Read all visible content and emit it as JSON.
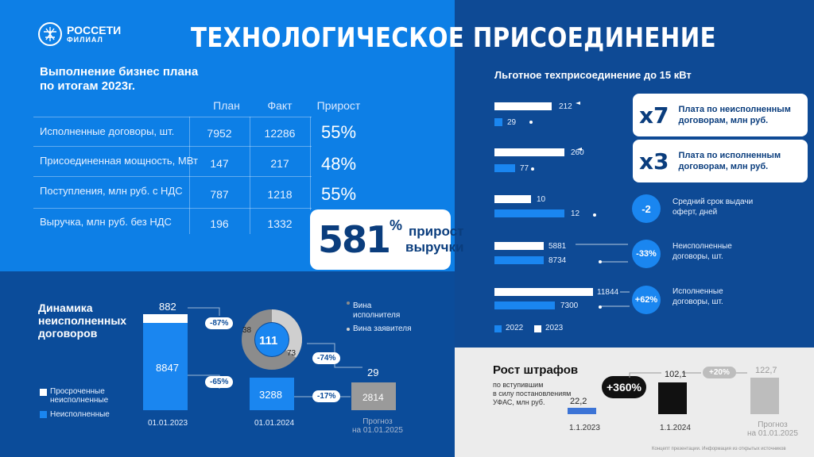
{
  "header": {
    "logo_name": "РОССЕТИ",
    "logo_sub": "ФИЛИАЛ",
    "title": "ТЕХНОЛОГИЧЕСКОЕ ПРИСОЕДИНЕНИЕ"
  },
  "business_plan": {
    "title_line1": "Выполнение бизнес плана",
    "title_line2": "по итогам 2023г.",
    "columns": [
      "План",
      "Факт",
      "Прирост"
    ],
    "rows": [
      {
        "label": "Исполненные договоры, шт.",
        "plan": "7952",
        "fact": "12286",
        "growth": "55%"
      },
      {
        "label": "Присоединенная мощность, МВт",
        "plan": "147",
        "fact": "217",
        "growth": "48%"
      },
      {
        "label": "Поступления, млн руб. с НДС",
        "plan": "787",
        "fact": "1218",
        "growth": "55%"
      },
      {
        "label": "Выручка, млн руб. без НДС",
        "plan": "196",
        "fact": "1332",
        "growth": ""
      }
    ],
    "highlight": {
      "value": "581",
      "unit": "%",
      "text_line1": "прирост",
      "text_line2": "выручки"
    }
  },
  "dynamics": {
    "title_line1": "Динамика",
    "title_line2": "неисполненных",
    "title_line3": "договоров",
    "legend": {
      "overdue_line1": "Просроченные",
      "overdue_line2": "неисполненные",
      "unfulfilled": "Неисполненные"
    },
    "bar1": {
      "top": "882",
      "main": "8847",
      "date": "01.01.2023"
    },
    "pct1": "-87%",
    "pct2": "-65%",
    "donut": {
      "center": "111",
      "left": "38",
      "right": "73",
      "label1_line1": "Вина",
      "label1_line2": "исполнителя",
      "label2": "Вина заявителя"
    },
    "pct3": "-74%",
    "pct4": "-17%",
    "bar2": {
      "main": "3288",
      "date": "01.01.2024"
    },
    "forecast": {
      "top": "29",
      "main": "2814",
      "label_line1": "Прогноз",
      "label_line2": "на 01.01.2025"
    }
  },
  "preferential": {
    "title": "Льготное техприсоединение до 15 кВт",
    "pairs": [
      {
        "v2023": "212",
        "v2022": "29"
      },
      {
        "v2023": "260",
        "v2022": "77"
      },
      {
        "v2023": "10",
        "v2022": "12"
      },
      {
        "v2023": "5881",
        "v2022": "8734"
      },
      {
        "v2023": "11844",
        "v2022": "7300"
      }
    ],
    "legend_2022": "2022",
    "legend_2023": "2023",
    "cards": [
      {
        "mult": "x7",
        "line1": "Плата по неисполненным",
        "line2": "договорам, млн руб."
      },
      {
        "mult": "x3",
        "line1": "Плата по исполненным",
        "line2": "договорам, млн руб."
      }
    ],
    "badges": [
      {
        "value": "-2",
        "line1": "Средний срок выдачи",
        "line2": "оферт, дней"
      },
      {
        "value": "-33%",
        "line1": "Неисполненные",
        "line2": "договоры, шт."
      },
      {
        "value": "+62%",
        "line1": "Исполненные",
        "line2": "договоры, шт."
      }
    ]
  },
  "fines": {
    "title": "Рост штрафов",
    "sub_line1": "по вступившим",
    "sub_line2": "в силу постановлениям",
    "sub_line3": "УФАС, млн руб.",
    "growth_badge": "+360%",
    "small_badge": "+20%",
    "bars": [
      {
        "value": "22,2",
        "date": "1.1.2023"
      },
      {
        "value": "102,1",
        "date": "1.1.2024"
      },
      {
        "value": "122,7",
        "date_line1": "Прогноз",
        "date_line2": "на 01.01.2025"
      }
    ],
    "footnote": "Концепт презентации. Информация из открытых источников"
  },
  "colors": {
    "primary_blue": "#0d7fe6",
    "dark_blue": "#0b4c9a",
    "accent_blue": "#1a86f0"
  }
}
